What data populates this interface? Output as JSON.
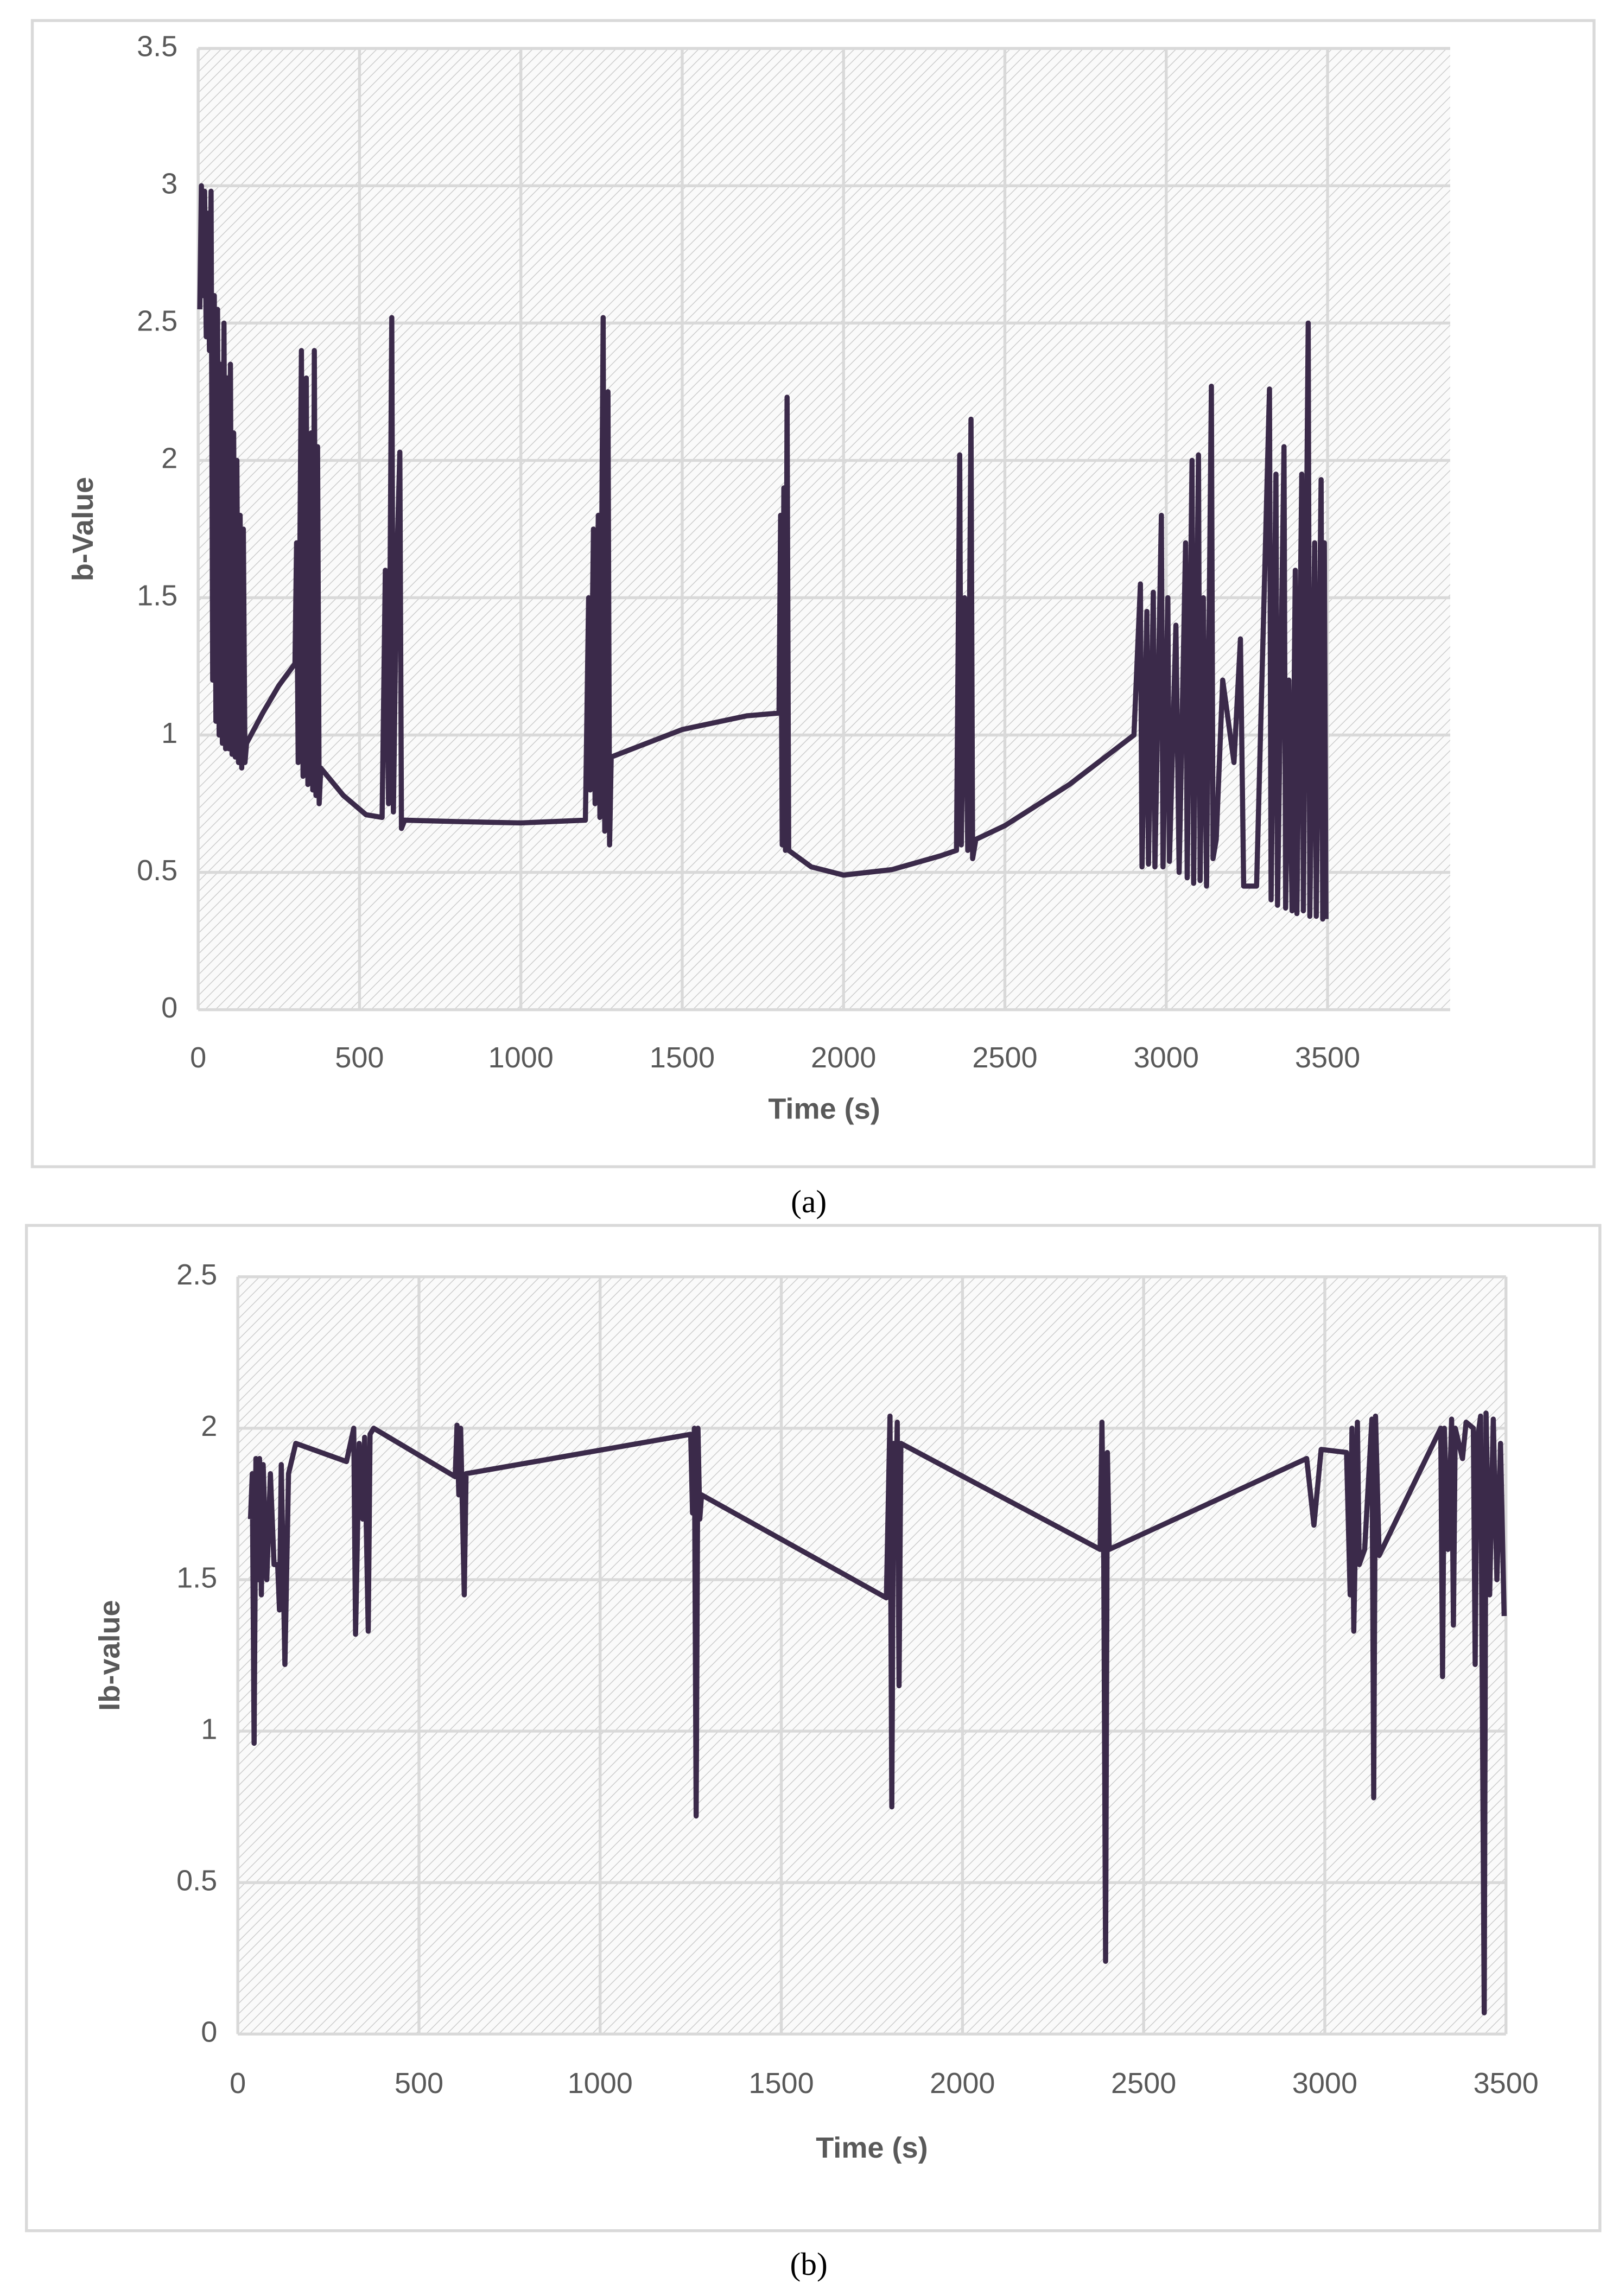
{
  "chart_data": [
    {
      "type": "line",
      "caption": "(a)",
      "x_label": "Time (s)",
      "y_label": "b-Value",
      "color": "#3b2a4a",
      "grid": true,
      "xlim": [
        0,
        3880
      ],
      "xticks": [
        0,
        500,
        1000,
        1500,
        2000,
        2500,
        3000,
        3500
      ],
      "ylim": [
        0,
        3.5
      ],
      "yticks": [
        0,
        0.5,
        1,
        1.5,
        2,
        2.5,
        3,
        3.5
      ],
      "x": [
        5,
        10,
        15,
        20,
        25,
        30,
        35,
        40,
        45,
        50,
        55,
        60,
        65,
        70,
        75,
        80,
        85,
        90,
        95,
        100,
        105,
        110,
        115,
        120,
        125,
        130,
        135,
        140,
        145,
        150,
        200,
        250,
        300,
        305,
        310,
        320,
        325,
        335,
        340,
        350,
        355,
        360,
        365,
        370,
        375,
        380,
        450,
        520,
        570,
        580,
        590,
        600,
        605,
        615,
        625,
        630,
        640,
        800,
        1000,
        1200,
        1210,
        1215,
        1225,
        1230,
        1240,
        1245,
        1255,
        1260,
        1270,
        1275,
        1280,
        1500,
        1700,
        1800,
        1805,
        1810,
        1815,
        1820,
        1825,
        1830,
        1900,
        2000,
        2150,
        2300,
        2350,
        2360,
        2365,
        2375,
        2385,
        2395,
        2400,
        2410,
        2500,
        2700,
        2900,
        2920,
        2925,
        2940,
        2945,
        2960,
        2965,
        2985,
        2990,
        3005,
        3010,
        3030,
        3040,
        3060,
        3065,
        3080,
        3085,
        3100,
        3105,
        3115,
        3125,
        3140,
        3145,
        3155,
        3175,
        3210,
        3230,
        3240,
        3280,
        3320,
        3325,
        3340,
        3345,
        3365,
        3370,
        3380,
        3390,
        3400,
        3405,
        3420,
        3425,
        3440,
        3445,
        3460,
        3465,
        3480,
        3485,
        3490,
        3495
      ],
      "values": [
        2.55,
        3.0,
        2.6,
        2.98,
        2.45,
        2.9,
        2.4,
        2.98,
        1.2,
        2.6,
        1.05,
        2.55,
        1.0,
        2.35,
        0.97,
        2.5,
        0.95,
        2.3,
        0.95,
        2.35,
        0.93,
        2.1,
        0.92,
        2.0,
        0.9,
        1.8,
        0.88,
        1.75,
        0.9,
        0.97,
        1.08,
        1.18,
        1.26,
        1.7,
        0.9,
        2.4,
        0.85,
        2.3,
        0.82,
        2.1,
        0.8,
        2.4,
        0.78,
        2.05,
        0.75,
        0.88,
        0.78,
        0.71,
        0.7,
        1.6,
        0.75,
        2.52,
        0.72,
        1.6,
        2.03,
        0.66,
        0.69,
        0.685,
        0.68,
        0.69,
        1.5,
        0.8,
        1.75,
        0.75,
        1.8,
        0.7,
        2.52,
        0.65,
        2.25,
        0.6,
        0.92,
        1.02,
        1.07,
        1.08,
        1.8,
        0.6,
        1.9,
        0.58,
        2.23,
        0.58,
        0.52,
        0.49,
        0.51,
        0.56,
        0.58,
        2.02,
        0.6,
        1.5,
        0.58,
        2.15,
        0.55,
        0.62,
        0.67,
        0.82,
        1.0,
        1.55,
        0.52,
        1.45,
        0.53,
        1.52,
        0.52,
        1.8,
        0.52,
        1.5,
        0.54,
        1.4,
        0.5,
        1.7,
        0.48,
        2.0,
        0.46,
        2.02,
        0.47,
        1.5,
        0.45,
        2.27,
        0.55,
        0.62,
        1.2,
        0.9,
        1.35,
        0.45,
        0.45,
        2.26,
        0.4,
        1.95,
        0.38,
        2.05,
        0.37,
        1.2,
        0.36,
        1.6,
        0.35,
        1.95,
        0.36,
        2.5,
        0.34,
        1.7,
        0.34,
        1.93,
        0.33,
        1.7,
        0.33
      ]
    },
    {
      "type": "line",
      "caption": "(b)",
      "x_label": "Time (s)",
      "y_label": "Ib-value",
      "color": "#3b2a4a",
      "grid": true,
      "xlim": [
        0,
        3500
      ],
      "xticks": [
        0,
        500,
        1000,
        1500,
        2000,
        2500,
        3000,
        3500
      ],
      "ylim": [
        0,
        2.5
      ],
      "yticks": [
        0,
        0.5,
        1,
        1.5,
        2,
        2.5
      ],
      "x": [
        35,
        40,
        45,
        50,
        55,
        60,
        65,
        70,
        80,
        90,
        100,
        110,
        115,
        120,
        130,
        140,
        160,
        300,
        320,
        325,
        335,
        345,
        350,
        360,
        365,
        375,
        600,
        605,
        610,
        615,
        625,
        630,
        1250,
        1255,
        1260,
        1265,
        1270,
        1275,
        1280,
        1790,
        1800,
        1805,
        1810,
        1815,
        1820,
        1825,
        1830,
        2380,
        2385,
        2390,
        2395,
        2400,
        2405,
        2950,
        2970,
        2990,
        3060,
        3070,
        3075,
        3080,
        3090,
        3095,
        3110,
        3130,
        3135,
        3140,
        3150,
        3320,
        3325,
        3330,
        3340,
        3350,
        3355,
        3360,
        3380,
        3390,
        3410,
        3415,
        3420,
        3430,
        3440,
        3445,
        3455,
        3465,
        3475,
        3485,
        3495
      ],
      "values": [
        1.7,
        1.85,
        0.96,
        1.9,
        1.5,
        1.9,
        1.45,
        1.88,
        1.5,
        1.85,
        1.55,
        1.55,
        1.4,
        1.88,
        1.22,
        1.85,
        1.95,
        1.89,
        2.0,
        1.32,
        1.95,
        1.7,
        1.97,
        1.33,
        1.98,
        2.0,
        1.84,
        2.01,
        1.78,
        2.0,
        1.45,
        1.85,
        1.98,
        1.72,
        2.0,
        0.72,
        2.0,
        1.7,
        1.78,
        1.44,
        2.04,
        0.75,
        1.95,
        1.7,
        2.02,
        1.15,
        1.95,
        1.6,
        2.02,
        1.55,
        0.24,
        1.92,
        1.6,
        1.9,
        1.68,
        1.93,
        1.92,
        1.45,
        2.0,
        1.33,
        2.02,
        1.55,
        1.6,
        2.03,
        0.78,
        2.04,
        1.58,
        2.0,
        1.18,
        2.0,
        1.6,
        2.03,
        1.35,
        2.0,
        1.9,
        2.02,
        2.0,
        1.22,
        1.95,
        2.04,
        0.07,
        2.05,
        1.45,
        2.03,
        1.5,
        1.95,
        1.38
      ]
    }
  ]
}
